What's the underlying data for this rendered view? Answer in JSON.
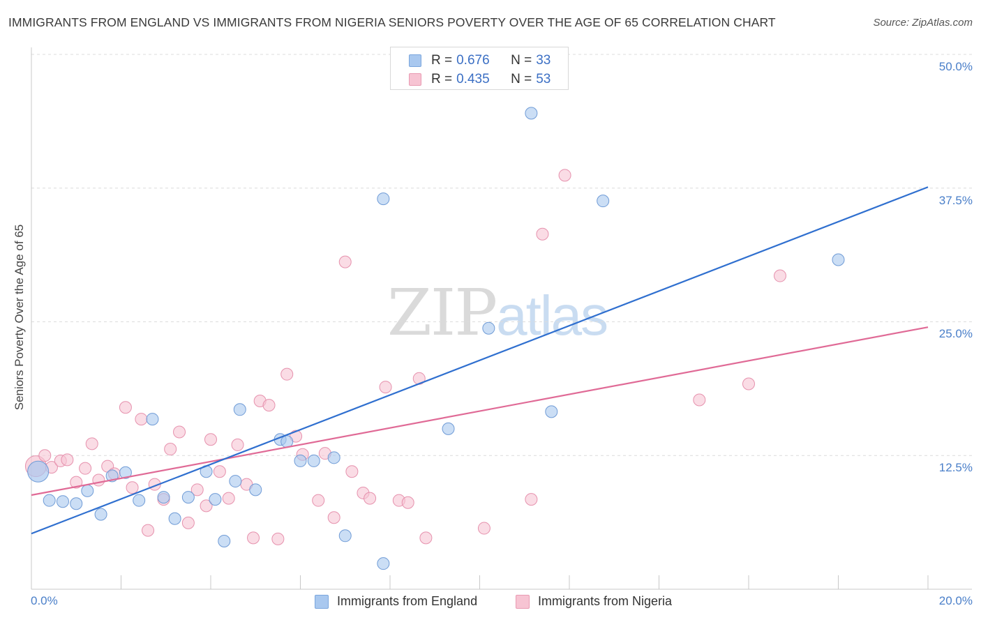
{
  "header": {
    "title": "IMMIGRANTS FROM ENGLAND VS IMMIGRANTS FROM NIGERIA SENIORS POVERTY OVER THE AGE OF 65 CORRELATION CHART",
    "source": "Source: ZipAtlas.com"
  },
  "watermark": {
    "zip": "ZIP",
    "atlas": "atlas"
  },
  "legend_top": {
    "rows": [
      {
        "r_label": "R =",
        "r_value": "0.676",
        "n_label": "N =",
        "n_value": "33",
        "color": "#a9c8ef",
        "border": "#7aa6dd"
      },
      {
        "r_label": "R =",
        "r_value": "0.435",
        "n_label": "N =",
        "n_value": "53",
        "color": "#f7c4d3",
        "border": "#e99ab2"
      }
    ]
  },
  "legend_bottom": {
    "england": "Immigrants from England",
    "nigeria": "Immigrants from Nigeria"
  },
  "colors": {
    "england_fill": "#a9c8ef",
    "england_stroke": "#6f9bd6",
    "england_line": "#2f6fcf",
    "nigeria_fill": "#f7c4d3",
    "nigeria_stroke": "#e691ad",
    "nigeria_line": "#e06a96",
    "tick_label": "#4a7fc9"
  },
  "chart_data": {
    "type": "scatter",
    "title": "IMMIGRANTS FROM ENGLAND VS IMMIGRANTS FROM NIGERIA SENIORS POVERTY OVER THE AGE OF 65 CORRELATION CHART",
    "xlabel": "",
    "ylabel": "Seniors Poverty Over the Age of 65",
    "xlim": [
      0,
      20
    ],
    "ylim": [
      0,
      50
    ],
    "x_tick_labels": [
      "0.0%",
      "20.0%"
    ],
    "y_ticks": [
      12.5,
      25.0,
      37.5,
      50.0
    ],
    "y_tick_labels": [
      "12.5%",
      "25.0%",
      "37.5%",
      "50.0%"
    ],
    "series": [
      {
        "name": "Immigrants from England",
        "r": 0.676,
        "n": 33,
        "trend": {
          "x": [
            0,
            20
          ],
          "y": [
            5.2,
            37.6
          ]
        },
        "points": [
          {
            "x": 0.15,
            "y": 11.0,
            "big": true
          },
          {
            "x": 0.4,
            "y": 8.3
          },
          {
            "x": 0.7,
            "y": 8.2
          },
          {
            "x": 1.0,
            "y": 8.0
          },
          {
            "x": 1.25,
            "y": 9.2
          },
          {
            "x": 1.55,
            "y": 7.0
          },
          {
            "x": 1.8,
            "y": 10.6
          },
          {
            "x": 2.1,
            "y": 10.9
          },
          {
            "x": 2.4,
            "y": 8.3
          },
          {
            "x": 2.7,
            "y": 15.9
          },
          {
            "x": 2.95,
            "y": 8.6
          },
          {
            "x": 3.2,
            "y": 6.6
          },
          {
            "x": 3.5,
            "y": 8.6
          },
          {
            "x": 3.9,
            "y": 11.0
          },
          {
            "x": 4.1,
            "y": 8.4
          },
          {
            "x": 4.3,
            "y": 4.5
          },
          {
            "x": 4.65,
            "y": 16.8
          },
          {
            "x": 4.55,
            "y": 10.1
          },
          {
            "x": 5.0,
            "y": 9.3
          },
          {
            "x": 5.55,
            "y": 14.0
          },
          {
            "x": 5.7,
            "y": 13.8
          },
          {
            "x": 6.0,
            "y": 12.0
          },
          {
            "x": 6.3,
            "y": 12.0
          },
          {
            "x": 6.75,
            "y": 12.3
          },
          {
            "x": 7.0,
            "y": 5.0
          },
          {
            "x": 7.85,
            "y": 2.4
          },
          {
            "x": 7.85,
            "y": 36.5
          },
          {
            "x": 9.3,
            "y": 15.0
          },
          {
            "x": 10.2,
            "y": 24.4
          },
          {
            "x": 11.15,
            "y": 44.5
          },
          {
            "x": 11.6,
            "y": 16.6
          },
          {
            "x": 12.75,
            "y": 36.3
          },
          {
            "x": 18.0,
            "y": 30.8
          }
        ]
      },
      {
        "name": "Immigrants from Nigeria",
        "r": 0.435,
        "n": 53,
        "trend": {
          "x": [
            0,
            20
          ],
          "y": [
            8.8,
            24.5
          ]
        },
        "points": [
          {
            "x": 0.1,
            "y": 11.5,
            "big": true
          },
          {
            "x": 0.3,
            "y": 12.5
          },
          {
            "x": 0.45,
            "y": 11.4
          },
          {
            "x": 0.65,
            "y": 12.0
          },
          {
            "x": 0.8,
            "y": 12.1
          },
          {
            "x": 1.0,
            "y": 10.0
          },
          {
            "x": 1.2,
            "y": 11.3
          },
          {
            "x": 1.35,
            "y": 13.6
          },
          {
            "x": 1.5,
            "y": 10.2
          },
          {
            "x": 1.7,
            "y": 11.5
          },
          {
            "x": 1.85,
            "y": 10.8
          },
          {
            "x": 2.1,
            "y": 17.0
          },
          {
            "x": 2.25,
            "y": 9.5
          },
          {
            "x": 2.45,
            "y": 15.9
          },
          {
            "x": 2.6,
            "y": 5.5
          },
          {
            "x": 2.75,
            "y": 9.8
          },
          {
            "x": 2.95,
            "y": 8.4
          },
          {
            "x": 3.1,
            "y": 13.1
          },
          {
            "x": 3.3,
            "y": 14.7
          },
          {
            "x": 3.5,
            "y": 6.2
          },
          {
            "x": 3.7,
            "y": 9.3
          },
          {
            "x": 3.9,
            "y": 7.8
          },
          {
            "x": 4.0,
            "y": 14.0
          },
          {
            "x": 4.2,
            "y": 11.0
          },
          {
            "x": 4.4,
            "y": 8.5
          },
          {
            "x": 4.6,
            "y": 13.5
          },
          {
            "x": 4.8,
            "y": 9.8
          },
          {
            "x": 4.95,
            "y": 4.8
          },
          {
            "x": 5.1,
            "y": 17.6
          },
          {
            "x": 5.3,
            "y": 17.2
          },
          {
            "x": 5.5,
            "y": 4.7
          },
          {
            "x": 5.7,
            "y": 20.1
          },
          {
            "x": 5.9,
            "y": 14.3
          },
          {
            "x": 6.05,
            "y": 12.6
          },
          {
            "x": 6.4,
            "y": 8.3
          },
          {
            "x": 6.55,
            "y": 12.7
          },
          {
            "x": 6.75,
            "y": 6.7
          },
          {
            "x": 7.0,
            "y": 30.6
          },
          {
            "x": 7.15,
            "y": 11.0
          },
          {
            "x": 7.4,
            "y": 9.0
          },
          {
            "x": 7.55,
            "y": 8.5
          },
          {
            "x": 7.9,
            "y": 18.9
          },
          {
            "x": 8.2,
            "y": 8.3
          },
          {
            "x": 8.4,
            "y": 8.1
          },
          {
            "x": 8.65,
            "y": 19.7
          },
          {
            "x": 8.8,
            "y": 4.8
          },
          {
            "x": 10.1,
            "y": 5.7
          },
          {
            "x": 11.15,
            "y": 8.4
          },
          {
            "x": 11.4,
            "y": 33.2
          },
          {
            "x": 11.9,
            "y": 38.7
          },
          {
            "x": 14.9,
            "y": 17.7
          },
          {
            "x": 16.0,
            "y": 19.2
          },
          {
            "x": 16.7,
            "y": 29.3
          }
        ]
      }
    ]
  }
}
